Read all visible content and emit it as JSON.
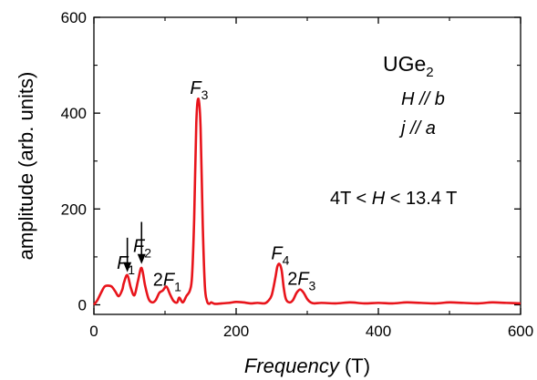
{
  "chart_data": {
    "type": "line",
    "title": "",
    "xlabel": {
      "italic": "Frequency",
      "unit": "(T)"
    },
    "ylabel": "amplitude (arb. units)",
    "xlim": [
      0,
      600
    ],
    "ylim": [
      -20,
      600
    ],
    "xticks": [
      0,
      200,
      400,
      600
    ],
    "yticks": [
      0,
      200,
      400,
      600
    ],
    "grid": false,
    "legend": "none",
    "line_color": "#e8141b",
    "series": [
      {
        "x": [
          0,
          5,
          10,
          15,
          20,
          25,
          30,
          35,
          40,
          42,
          47,
          52,
          57,
          62,
          67,
          72,
          77,
          82,
          87,
          92,
          97,
          102,
          107,
          112,
          117,
          120,
          125,
          130,
          135,
          138,
          141,
          144,
          147,
          150,
          153,
          156,
          159,
          162,
          165,
          170,
          180,
          190,
          200,
          210,
          220,
          230,
          240,
          245,
          250,
          255,
          258,
          261,
          264,
          267,
          270,
          275,
          280,
          285,
          290,
          295,
          300,
          305,
          310,
          320,
          340,
          360,
          380,
          400,
          420,
          440,
          460,
          480,
          500,
          520,
          540,
          560,
          580,
          600
        ],
        "y": [
          0,
          10,
          25,
          38,
          40,
          38,
          28,
          18,
          32,
          45,
          62,
          35,
          20,
          50,
          77,
          40,
          12,
          5,
          10,
          25,
          30,
          38,
          22,
          8,
          5,
          15,
          5,
          18,
          30,
          60,
          180,
          380,
          430,
          370,
          170,
          40,
          8,
          2,
          5,
          2,
          3,
          4,
          6,
          5,
          3,
          4,
          3,
          8,
          20,
          55,
          80,
          85,
          72,
          35,
          12,
          5,
          10,
          25,
          32,
          25,
          12,
          5,
          3,
          4,
          3,
          5,
          3,
          4,
          3,
          5,
          4,
          3,
          5,
          4,
          3,
          5,
          4,
          3
        ]
      }
    ],
    "annotations": [
      {
        "base": "F",
        "sub": "1",
        "x": 45,
        "y": 75
      },
      {
        "base": "F",
        "sub": "2",
        "x": 68,
        "y": 110
      },
      {
        "base": "2F",
        "sub": "1",
        "x": 103,
        "y": 40
      },
      {
        "base": "F",
        "sub": "3",
        "x": 148,
        "y": 440
      },
      {
        "base": "F",
        "sub": "4",
        "x": 262,
        "y": 95
      },
      {
        "base": "2F",
        "sub": "3",
        "x": 292,
        "y": 42
      }
    ],
    "arrows": [
      {
        "target": "F1",
        "x": 47,
        "y_from": 140,
        "y_to": 68
      },
      {
        "target": "F2",
        "x": 67,
        "y_from": 173,
        "y_to": 85
      }
    ],
    "inset_text": {
      "compound_base": "UGe",
      "compound_sub": "2",
      "field_dir_H": "H",
      "field_dir_sep": " // ",
      "field_dir_b": "b",
      "current_dir_j": "j",
      "current_dir_sep": " // ",
      "current_dir_a": "a",
      "range_left": "4T < ",
      "range_H": "H",
      "range_right": " < 13.4 T"
    }
  }
}
